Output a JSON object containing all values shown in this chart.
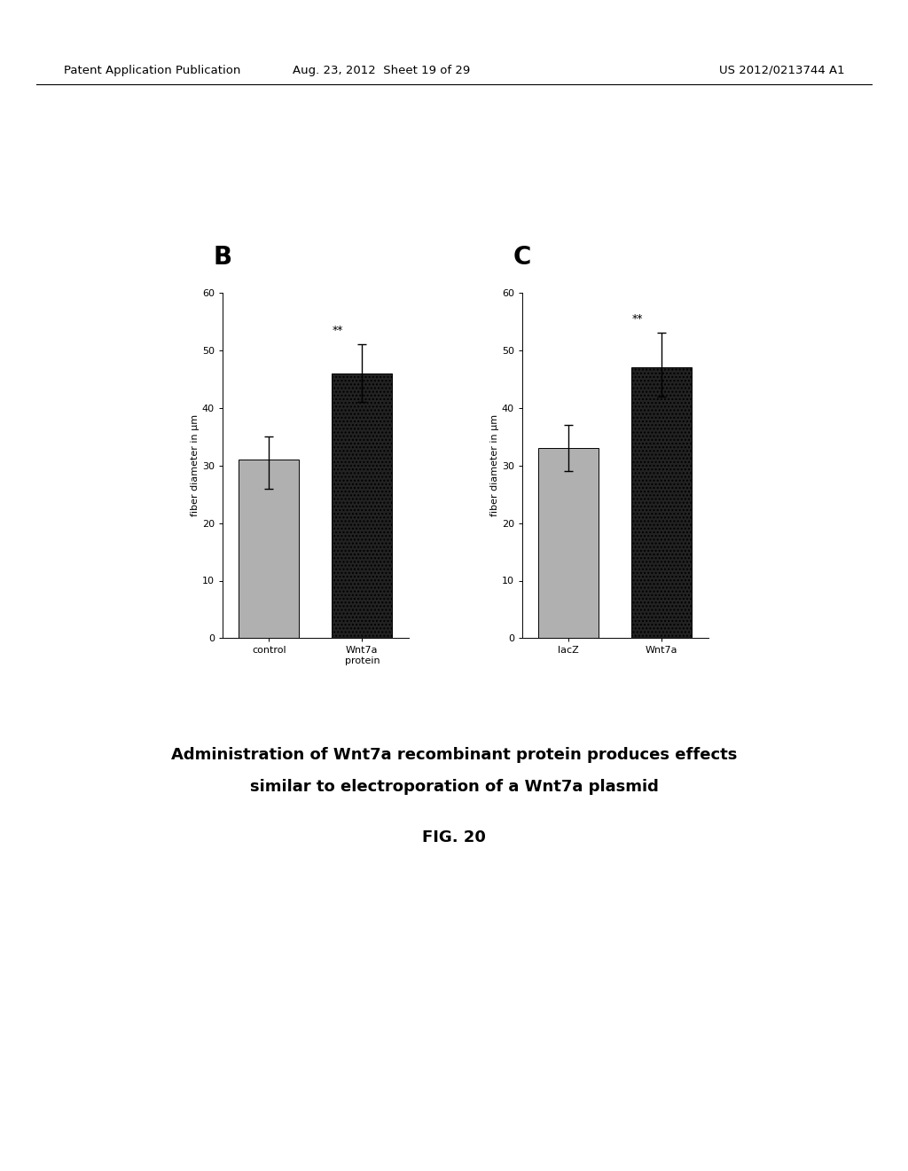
{
  "panel_B": {
    "categories": [
      "control",
      "Wnt7a\nprotein"
    ],
    "values": [
      31,
      46
    ],
    "errors_up": [
      4,
      5
    ],
    "errors_down": [
      5,
      5
    ],
    "bar_colors": [
      "#b0b0b0",
      "#222222"
    ],
    "ylabel": "fiber diameter in µm",
    "ylim": [
      0,
      60
    ],
    "yticks": [
      0,
      10,
      20,
      30,
      40,
      50,
      60
    ],
    "label": "B",
    "sig_bar_index": 1,
    "sig_text": "**"
  },
  "panel_C": {
    "categories": [
      "lacZ",
      "Wnt7a"
    ],
    "values": [
      33,
      47
    ],
    "errors_up": [
      4,
      6
    ],
    "errors_down": [
      4,
      5
    ],
    "bar_colors": [
      "#b0b0b0",
      "#222222"
    ],
    "ylabel": "fiber diameter in µm",
    "ylim": [
      0,
      60
    ],
    "yticks": [
      0,
      10,
      20,
      30,
      40,
      50,
      60
    ],
    "label": "C",
    "sig_bar_index": 1,
    "sig_text": "**"
  },
  "caption_line1": "Administration of Wnt7a recombinant protein produces effects",
  "caption_line2": "similar to electroporation of a Wnt7a plasmid",
  "fig_label": "FIG. 20",
  "header_left": "Patent Application Publication",
  "header_mid": "Aug. 23, 2012  Sheet 19 of 29",
  "header_right": "US 2012/0213744 A1",
  "background_color": "#ffffff"
}
